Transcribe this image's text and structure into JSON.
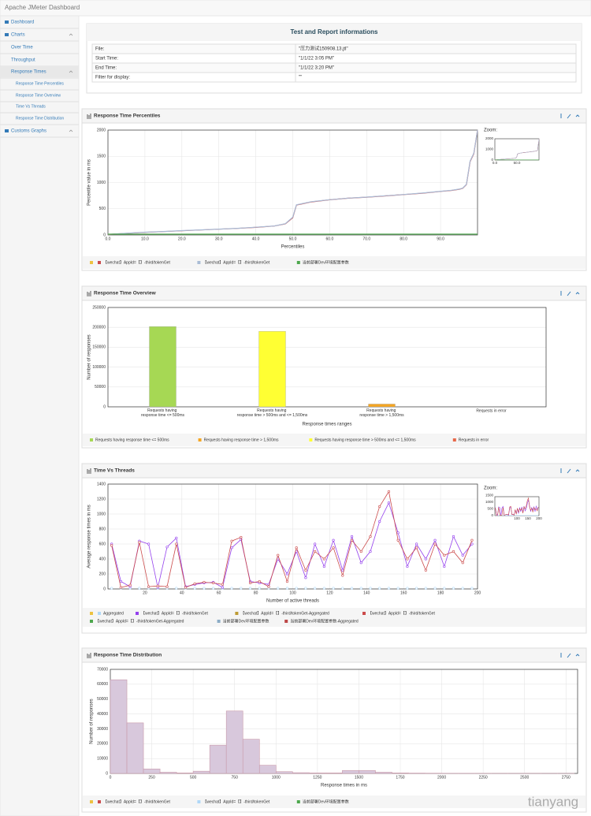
{
  "header": {
    "title": "Apache JMeter Dashboard"
  },
  "sidebar": {
    "items": [
      {
        "label": "Dashboard",
        "level": 0
      },
      {
        "label": "Charts",
        "level": 0,
        "expand": true
      },
      {
        "label": "Over Time",
        "level": 1
      },
      {
        "label": "Throughput",
        "level": 1
      },
      {
        "label": "Response Times",
        "level": 1,
        "active": true,
        "expand": true
      },
      {
        "label": "Response Time Percentiles",
        "level": 2
      },
      {
        "label": "Response Time Overview",
        "level": 2
      },
      {
        "label": "Time Vs Threads",
        "level": 2
      },
      {
        "label": "Response Time Distribution",
        "level": 2
      },
      {
        "label": "Customs Graphs",
        "level": 0,
        "expand": true
      }
    ]
  },
  "info": {
    "title": "Test and Report informations",
    "rows": [
      [
        "File:",
        "\"压力测试150908.13.jtl\""
      ],
      [
        "Start Time:",
        "\"1/1/22 3:05 PM\""
      ],
      [
        "End Time:",
        "\"1/1/22 3:20 PM\""
      ],
      [
        "Filter for display:",
        "\"\""
      ]
    ]
  },
  "chart_data": [
    {
      "type": "line",
      "title": "Response Time Percentiles",
      "x_label": "Percentiles",
      "y_label": "Percentile value in ms",
      "grid": true,
      "x": [
        0,
        5,
        10,
        15,
        20,
        25,
        30,
        35,
        40,
        45,
        48,
        50,
        51,
        55,
        60,
        65,
        70,
        75,
        80,
        85,
        90,
        93,
        95,
        96,
        97,
        98,
        99,
        100
      ],
      "xlim": [
        0,
        100
      ],
      "ylim": [
        0,
        2000
      ],
      "yticks": [
        0,
        500,
        1000,
        1500,
        2000
      ],
      "xticks": [
        {
          "value": 0,
          "label": "0.0"
        },
        {
          "value": 10,
          "label": "10.0"
        },
        {
          "value": 20,
          "label": "20.0"
        },
        {
          "value": 30,
          "label": "30.0"
        },
        {
          "value": 40,
          "label": "40.0"
        },
        {
          "value": 50,
          "label": "50.0"
        },
        {
          "value": 60,
          "label": "60.0"
        },
        {
          "value": 70,
          "label": "70.0"
        },
        {
          "value": 80,
          "label": "80.0"
        },
        {
          "value": 90,
          "label": "90.0"
        }
      ],
      "legend_swatch_color": "#edc240",
      "series": [
        {
          "name": "【wechat】AppId=【】-third/tokenGet",
          "color": "#cb4b4b",
          "values": [
            10,
            30,
            50,
            65,
            80,
            95,
            110,
            125,
            145,
            170,
            210,
            330,
            570,
            630,
            670,
            700,
            720,
            745,
            770,
            795,
            830,
            850,
            870,
            890,
            960,
            1400,
            1550,
            2000
          ]
        },
        {
          "name": "【wechat】AppId=【】-third/tokenGet",
          "color": "#a9bcd6",
          "values": [
            12,
            32,
            52,
            66,
            82,
            96,
            112,
            127,
            147,
            172,
            215,
            340,
            575,
            635,
            672,
            702,
            722,
            748,
            772,
            798,
            833,
            853,
            873,
            893,
            965,
            1410,
            1560,
            2000
          ]
        },
        {
          "name": "当前部署Dev环境配置参数",
          "color": "#4da74d",
          "values": [
            15,
            15,
            15,
            15,
            15,
            15,
            15,
            15,
            15,
            15,
            15,
            15,
            15,
            15,
            15,
            15,
            15,
            15,
            15,
            15,
            15,
            15,
            15,
            15,
            15,
            15,
            15,
            15
          ]
        }
      ],
      "zoom": {
        "label": "Zoom:",
        "yticks": [
          0,
          1000,
          2000
        ],
        "xticks": [
          {
            "value": 0,
            "label": "0.0"
          },
          {
            "value": 50,
            "label": "50.0"
          }
        ]
      }
    },
    {
      "type": "bar",
      "title": "Response Time Overview",
      "x_label": "Response times ranges",
      "y_label": "Number of responses",
      "grid": true,
      "categories": [
        "Requests having response time <= 500ms",
        "Requests having response time > 500ms and <= 1,500ms",
        "Requests having response time > 1,500ms",
        "Requests in error"
      ],
      "values": [
        202000,
        190000,
        7000,
        0
      ],
      "colors": [
        "#a6d854",
        "#ffff33",
        "#f5a623",
        "#e8684a"
      ],
      "ylim": [
        0,
        250000
      ],
      "yticks": [
        0,
        50000,
        100000,
        150000,
        200000,
        250000
      ],
      "legend": [
        {
          "name": "Requests having response time <= 500ms",
          "color": "#a6d854"
        },
        {
          "name": "Requests having response time > 1,500ms",
          "color": "#f5a623"
        },
        {
          "name": "Requests having response time > 500ms and <= 1,500ms",
          "color": "#ffff33"
        },
        {
          "name": "Requests in error",
          "color": "#e8684a"
        }
      ]
    },
    {
      "type": "line",
      "title": "Time Vs Threads",
      "x_label": "Number of active threads",
      "y_label": "Average response times in ms",
      "grid": true,
      "markers": true,
      "x": [
        2,
        7,
        12,
        17,
        22,
        27,
        32,
        37,
        42,
        47,
        52,
        57,
        62,
        67,
        72,
        77,
        82,
        87,
        92,
        97,
        102,
        107,
        112,
        117,
        122,
        127,
        132,
        137,
        142,
        147,
        152,
        157,
        162,
        167,
        172,
        177,
        182,
        187,
        192,
        197
      ],
      "xlim": [
        0,
        200
      ],
      "ylim": [
        0,
        1400
      ],
      "yticks": [
        0,
        200,
        400,
        600,
        800,
        1000,
        1200,
        1400
      ],
      "xticks": [
        20,
        40,
        60,
        80,
        100,
        120,
        140,
        160,
        180,
        200
      ],
      "legend_swatch_color": "#edc240",
      "series": [
        {
          "name": "Aggregated",
          "color": "#afd8f8",
          "values": [
            10,
            10,
            10,
            10,
            10,
            10,
            10,
            10,
            10,
            10,
            10,
            10,
            10,
            10,
            10,
            10,
            10,
            10,
            10,
            10,
            10,
            10,
            10,
            10,
            10,
            10,
            10,
            10,
            10,
            10,
            10,
            10,
            10,
            10,
            10,
            10,
            10,
            10,
            10,
            10
          ]
        },
        {
          "name": "【wechat】AppId=【】-third/tokenGet",
          "color": "#9440ed",
          "values": [
            600,
            100,
            30,
            640,
            600,
            20,
            560,
            680,
            30,
            60,
            80,
            90,
            20,
            550,
            660,
            100,
            80,
            60,
            400,
            200,
            500,
            150,
            600,
            300,
            650,
            250,
            700,
            350,
            500,
            900,
            1150,
            750,
            300,
            600,
            400,
            650,
            300,
            700,
            450,
            600
          ]
        },
        {
          "name": "【wechat】AppId=【】-third/tokenGet-Aggregated",
          "color": "#bd9b33"
        },
        {
          "name": "【wechat】AppId=【】-third/tokenGet",
          "color": "#cb4b4b",
          "values": [
            580,
            20,
            50,
            620,
            30,
            40,
            30,
            600,
            20,
            70,
            90,
            80,
            60,
            640,
            690,
            80,
            100,
            30,
            450,
            100,
            550,
            250,
            500,
            400,
            550,
            180,
            650,
            500,
            700,
            1100,
            1300,
            650,
            400,
            550,
            250,
            600,
            450,
            500,
            350,
            650
          ]
        },
        {
          "name": "【wechat】AppId=【】-third/tokenGet-Aggregated",
          "color": "#4da74d"
        },
        {
          "name": "当前部署Dev环境配置参数",
          "color": "#8cacc6"
        },
        {
          "name": "当前部署Dev环境配置参数-Aggregated",
          "color": "#bd4747"
        }
      ],
      "zoom": {
        "label": "Zoom:",
        "yticks": [
          0,
          500,
          1000,
          1500
        ],
        "xticks": [
          100,
          150,
          200
        ]
      }
    },
    {
      "type": "histogram",
      "title": "Response Time Distribution",
      "x_label": "Response times in ms",
      "y_label": "Number of responses",
      "grid": true,
      "color": "#d8c8dc",
      "edge_color": "#c99aaa",
      "bins": [
        0,
        100,
        200,
        300,
        400,
        500,
        600,
        700,
        800,
        900,
        1000,
        1100,
        1200,
        1300,
        1400,
        1500,
        1600,
        1700,
        1800,
        1900,
        2000,
        2100,
        2200,
        2300,
        2400,
        2500,
        2600,
        2700,
        2800
      ],
      "values": [
        63000,
        34000,
        3000,
        800,
        300,
        1500,
        19000,
        42000,
        23000,
        5500,
        1200,
        500,
        300,
        300,
        2000,
        2000,
        800,
        300,
        200,
        150,
        100,
        100,
        80,
        60,
        50,
        40,
        30,
        20
      ],
      "xlim": [
        0,
        2820
      ],
      "ylim": [
        0,
        70000
      ],
      "yticks": [
        0,
        10000,
        20000,
        30000,
        40000,
        50000,
        60000,
        70000
      ],
      "xticks": [
        0,
        250,
        500,
        750,
        1000,
        1250,
        1500,
        1750,
        2000,
        2250,
        2500,
        2750
      ],
      "legend_swatch_color": "#edc240",
      "legend": [
        {
          "name": "【wechat】AppId=【】-third/tokenGet",
          "color": "#cb4b4b"
        },
        {
          "name": "【wechat】AppId=【】-third/tokenGet",
          "color": "#afd8f8"
        },
        {
          "name": "当前部署Dev环境配置参数",
          "color": "#4da74d"
        }
      ]
    }
  ],
  "watermark": "tianyang"
}
